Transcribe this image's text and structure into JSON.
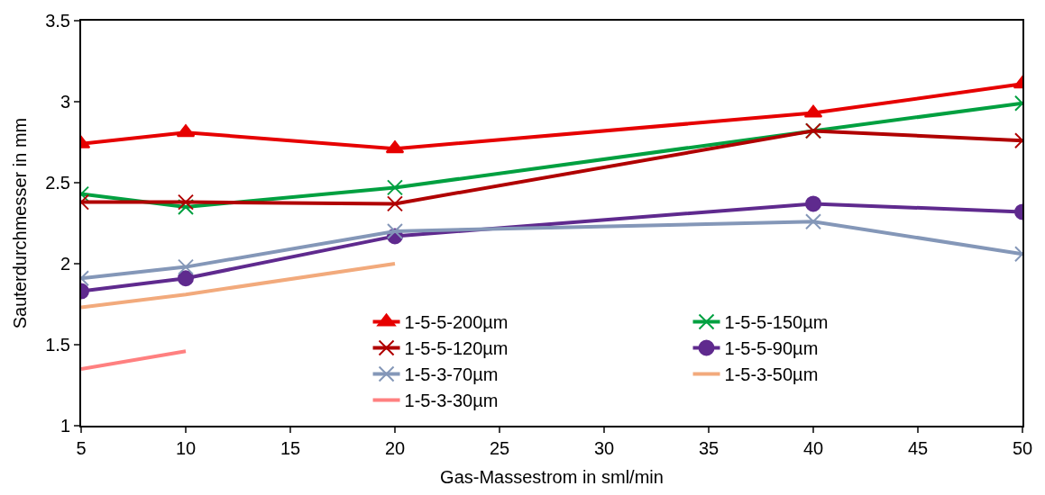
{
  "chart_data": {
    "type": "line",
    "xlabel": "Gas-Massestrom in sml/min",
    "ylabel": "Sauterdurchmesser in mm",
    "x": [
      5,
      10,
      20,
      40,
      50
    ],
    "series": [
      {
        "name": "1-5-5-200µm",
        "color": "#e60000",
        "marker": "triangle",
        "values": [
          2.74,
          2.81,
          2.71,
          2.93,
          3.11
        ]
      },
      {
        "name": "1-5-5-150µm",
        "color": "#00a040",
        "marker": "cross",
        "values": [
          2.43,
          2.35,
          2.47,
          2.82,
          2.99
        ]
      },
      {
        "name": "1-5-5-120µm",
        "color": "#b00000",
        "marker": "cross",
        "values": [
          2.38,
          2.38,
          2.37,
          2.82,
          2.76
        ]
      },
      {
        "name": "1-5-5-90µm",
        "color": "#5f2a8e",
        "marker": "circle",
        "values": [
          1.83,
          1.91,
          2.17,
          2.37,
          2.32
        ]
      },
      {
        "name": "1-5-3-70µm",
        "color": "#8497b8",
        "marker": "cross",
        "values": [
          1.91,
          1.98,
          2.2,
          2.26,
          2.06
        ]
      },
      {
        "name": "1-5-3-50µm",
        "color": "#f2aa7c",
        "marker": "none",
        "values": [
          1.73,
          1.81,
          2.0,
          null,
          null
        ]
      },
      {
        "name": "1-5-3-30µm",
        "color": "#ff8080",
        "marker": "none",
        "values": [
          1.35,
          1.46,
          null,
          null,
          null
        ]
      }
    ],
    "xlim": [
      5,
      50
    ],
    "xticks": [
      5,
      10,
      15,
      20,
      25,
      30,
      35,
      40,
      45,
      50
    ],
    "ylim": [
      1,
      3.5
    ],
    "yticks": [
      1,
      1.5,
      2,
      2.5,
      3,
      3.5
    ],
    "legend": "bottom right",
    "line_style": "solid"
  }
}
